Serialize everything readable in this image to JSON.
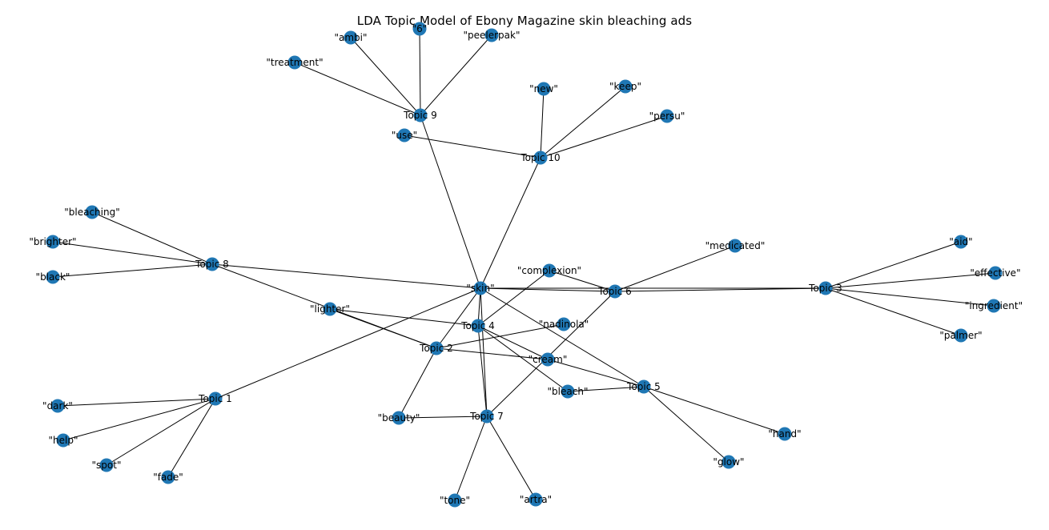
{
  "title": "LDA Topic Model of Ebony Magazine skin bleaching ads",
  "colors": {
    "node": "#1f77b4",
    "edge": "#000000",
    "background": "#ffffff"
  },
  "nodes": [
    {
      "id": "topic-1",
      "label": "Topic 1"
    },
    {
      "id": "topic-2",
      "label": "Topic 2"
    },
    {
      "id": "topic-3",
      "label": "Topic 3"
    },
    {
      "id": "topic-4",
      "label": "Topic 4"
    },
    {
      "id": "topic-5",
      "label": "Topic 5"
    },
    {
      "id": "topic-6",
      "label": "Topic 6"
    },
    {
      "id": "topic-7",
      "label": "Topic 7"
    },
    {
      "id": "topic-8",
      "label": "Topic 8"
    },
    {
      "id": "topic-9",
      "label": "Topic 9"
    },
    {
      "id": "topic-10",
      "label": "Topic 10"
    },
    {
      "id": "skin",
      "label": "\"skin\""
    },
    {
      "id": "ambi",
      "label": "\"ambi\""
    },
    {
      "id": "6",
      "label": "\"6\""
    },
    {
      "id": "peelerpak",
      "label": "\"peelerpak\""
    },
    {
      "id": "treatment",
      "label": "\"treatment\""
    },
    {
      "id": "use",
      "label": "\"use\""
    },
    {
      "id": "new",
      "label": "\"new\""
    },
    {
      "id": "keep",
      "label": "\"keep\""
    },
    {
      "id": "persu",
      "label": "\"persu\""
    },
    {
      "id": "bleaching",
      "label": "\"bleaching\""
    },
    {
      "id": "brighter",
      "label": "\"brighter\""
    },
    {
      "id": "black",
      "label": "\"black\""
    },
    {
      "id": "lighter",
      "label": "\"lighter\""
    },
    {
      "id": "complexion",
      "label": "\"complexion\""
    },
    {
      "id": "medicated",
      "label": "\"medicated\""
    },
    {
      "id": "aid",
      "label": "\"aid\""
    },
    {
      "id": "effective",
      "label": "\"effective\""
    },
    {
      "id": "ingredient",
      "label": "\"ingredient\""
    },
    {
      "id": "palmer",
      "label": "\"palmer\""
    },
    {
      "id": "nadinola",
      "label": "\"nadinola\""
    },
    {
      "id": "cream",
      "label": "\"cream\""
    },
    {
      "id": "bleach",
      "label": "\"bleach\""
    },
    {
      "id": "hand",
      "label": "\"hand\""
    },
    {
      "id": "glow",
      "label": "\"glow\""
    },
    {
      "id": "beauty",
      "label": "\"beauty\""
    },
    {
      "id": "tone",
      "label": "\"tone\""
    },
    {
      "id": "artra",
      "label": "\"artra\""
    },
    {
      "id": "dark",
      "label": "\"dark\""
    },
    {
      "id": "help",
      "label": "\"help\""
    },
    {
      "id": "spot",
      "label": "\"spot\""
    },
    {
      "id": "fade",
      "label": "\"fade\""
    }
  ],
  "edges": [
    [
      "topic-9",
      "ambi"
    ],
    [
      "topic-9",
      "6"
    ],
    [
      "topic-9",
      "peelerpak"
    ],
    [
      "topic-9",
      "treatment"
    ],
    [
      "topic-9",
      "skin"
    ],
    [
      "topic-10",
      "use"
    ],
    [
      "topic-10",
      "new"
    ],
    [
      "topic-10",
      "keep"
    ],
    [
      "topic-10",
      "persu"
    ],
    [
      "topic-10",
      "skin"
    ],
    [
      "topic-8",
      "bleaching"
    ],
    [
      "topic-8",
      "brighter"
    ],
    [
      "topic-8",
      "black"
    ],
    [
      "topic-8",
      "skin"
    ],
    [
      "topic-8",
      "topic-2"
    ],
    [
      "topic-3",
      "aid"
    ],
    [
      "topic-3",
      "effective"
    ],
    [
      "topic-3",
      "ingredient"
    ],
    [
      "topic-3",
      "palmer"
    ],
    [
      "topic-3",
      "skin"
    ],
    [
      "topic-3",
      "topic-6"
    ],
    [
      "topic-6",
      "medicated"
    ],
    [
      "topic-6",
      "skin"
    ],
    [
      "topic-6",
      "complexion"
    ],
    [
      "topic-6",
      "topic-7"
    ],
    [
      "topic-4",
      "lighter"
    ],
    [
      "topic-4",
      "complexion"
    ],
    [
      "topic-4",
      "skin"
    ],
    [
      "topic-4",
      "cream"
    ],
    [
      "topic-4",
      "bleach"
    ],
    [
      "topic-2",
      "lighter"
    ],
    [
      "topic-2",
      "nadinola"
    ],
    [
      "topic-2",
      "cream"
    ],
    [
      "topic-2",
      "beauty"
    ],
    [
      "topic-2",
      "skin"
    ],
    [
      "topic-5",
      "cream"
    ],
    [
      "topic-5",
      "bleach"
    ],
    [
      "topic-5",
      "hand"
    ],
    [
      "topic-5",
      "glow"
    ],
    [
      "topic-5",
      "skin"
    ],
    [
      "topic-7",
      "beauty"
    ],
    [
      "topic-7",
      "tone"
    ],
    [
      "topic-7",
      "artra"
    ],
    [
      "topic-7",
      "skin"
    ],
    [
      "topic-7",
      "topic-4"
    ],
    [
      "topic-1",
      "dark"
    ],
    [
      "topic-1",
      "help"
    ],
    [
      "topic-1",
      "spot"
    ],
    [
      "topic-1",
      "fade"
    ],
    [
      "topic-1",
      "skin"
    ]
  ]
}
